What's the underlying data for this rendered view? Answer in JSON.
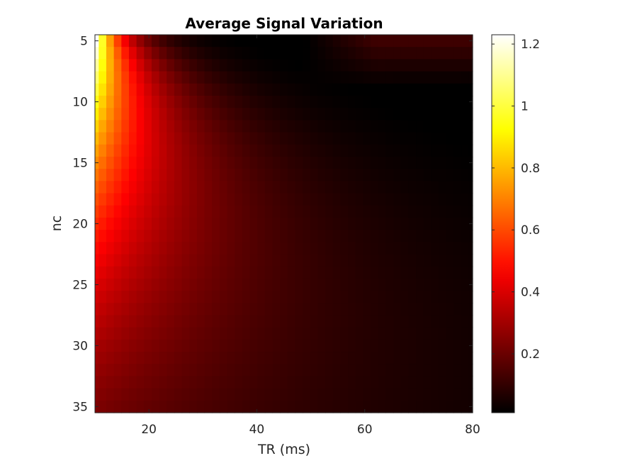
{
  "chart_data": {
    "type": "heatmap",
    "title": "Average Signal Variation",
    "xlabel": "TR (ms)",
    "ylabel": "nc",
    "x": {
      "min": 10,
      "max": 80,
      "step": 1.4,
      "count": 51
    },
    "y": {
      "min": 5,
      "max": 35,
      "step": 1,
      "count": 31,
      "reversed": true
    },
    "xlim": [
      10,
      80
    ],
    "ylim": [
      5,
      35.5
    ],
    "xticks": [
      20,
      40,
      60,
      80
    ],
    "yticks": [
      5,
      10,
      15,
      20,
      25,
      30,
      35
    ],
    "colormap": "hot",
    "colorbar": {
      "limits": [
        0.01,
        1.23
      ],
      "ticks": [
        0.2,
        0.4,
        0.6,
        0.8,
        1,
        1.2
      ],
      "tick_labels": [
        "0.2",
        "0.4",
        "0.6",
        "0.8",
        "1",
        "1.2"
      ]
    },
    "value_model": "approximate surface read from the image: v(TR, nc) ≈ 1.25·exp(-(TR-10)/(5.5+1.2·(nc-5))) · exp(-(nc-5)/18); near-zero valley ≈ TR 45-48 ms at nc=5, rising to ≈ 0.12 at TR 80 ms for nc 5-8",
    "grid": false,
    "colorbar_position": "right"
  }
}
